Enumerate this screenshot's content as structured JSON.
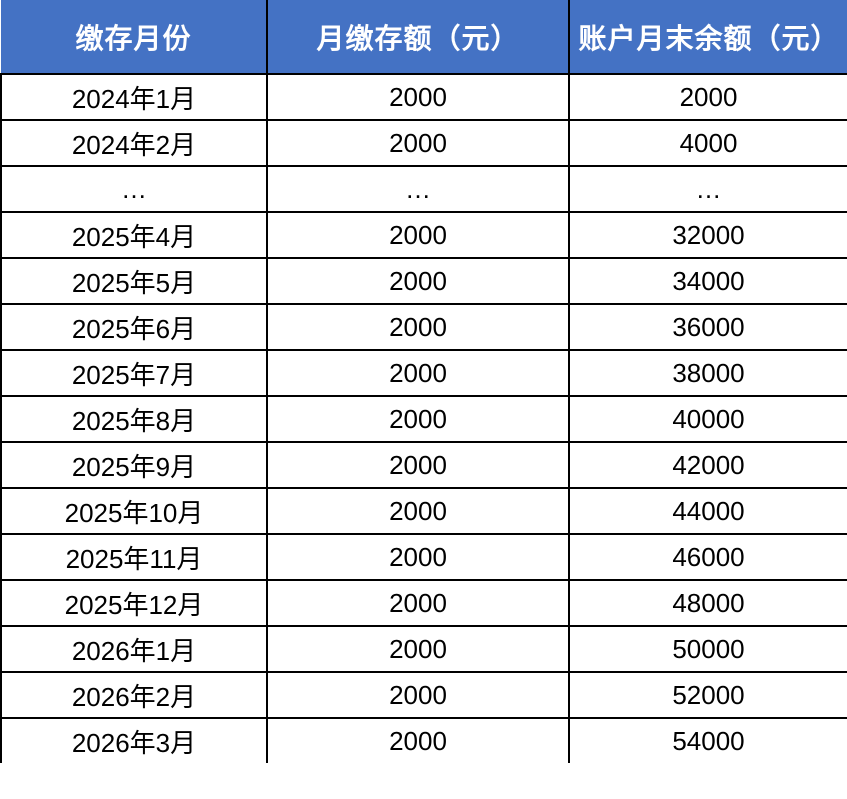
{
  "table": {
    "columns": [
      "缴存月份",
      "月缴存额（元）",
      "账户月末余额（元）"
    ],
    "rows": [
      [
        "2024年1月",
        "2000",
        "2000"
      ],
      [
        "2024年2月",
        "2000",
        "4000"
      ],
      [
        "…",
        "…",
        "…"
      ],
      [
        "2025年4月",
        "2000",
        "32000"
      ],
      [
        "2025年5月",
        "2000",
        "34000"
      ],
      [
        "2025年6月",
        "2000",
        "36000"
      ],
      [
        "2025年7月",
        "2000",
        "38000"
      ],
      [
        "2025年8月",
        "2000",
        "40000"
      ],
      [
        "2025年9月",
        "2000",
        "42000"
      ],
      [
        "2025年10月",
        "2000",
        "44000"
      ],
      [
        "2025年11月",
        "2000",
        "46000"
      ],
      [
        "2025年12月",
        "2000",
        "48000"
      ],
      [
        "2026年1月",
        "2000",
        "50000"
      ],
      [
        "2026年2月",
        "2000",
        "52000"
      ],
      [
        "2026年3月",
        "2000",
        "54000"
      ]
    ]
  },
  "colors": {
    "header_background": "#4472c4",
    "header_text": "#ffffff",
    "grid_border": "#000000",
    "cell_background": "#ffffff",
    "cell_text": "#000000"
  }
}
